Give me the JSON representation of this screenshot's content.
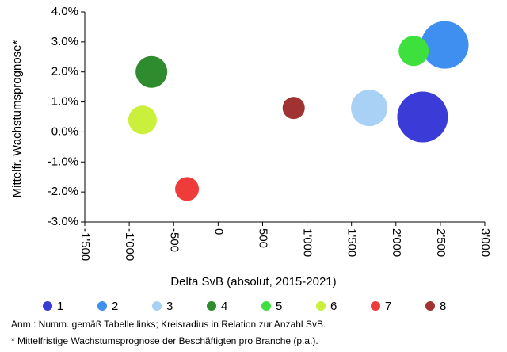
{
  "chart_data": {
    "type": "bubble",
    "xlabel": "Delta SvB (absolut, 2015-2021)",
    "ylabel": "Mittelfr. Wachstumsprognose*",
    "xlim": [
      -1500,
      3000
    ],
    "xticks": [
      {
        "value": -1500,
        "label": "-1'500"
      },
      {
        "value": -1000,
        "label": "-1'000"
      },
      -500,
      0,
      500,
      {
        "value": 1000,
        "label": "1'000"
      },
      {
        "value": 1500,
        "label": "1'500"
      },
      {
        "value": 2000,
        "label": "2'000"
      },
      {
        "value": 2500,
        "label": "2'500"
      },
      {
        "value": 3000,
        "label": "3'000"
      }
    ],
    "ylim": [
      -3,
      4
    ],
    "yticks": [
      {
        "value": -3,
        "label": "-3.0%"
      },
      {
        "value": -2,
        "label": "-2.0%"
      },
      {
        "value": -1,
        "label": "-1.0%"
      },
      {
        "value": 0,
        "label": "0.0%"
      },
      {
        "value": 1,
        "label": "1.0%"
      },
      {
        "value": 2,
        "label": "2.0%"
      },
      {
        "value": 3,
        "label": "3.0%"
      },
      {
        "value": 4,
        "label": "4.0%"
      }
    ],
    "series": [
      {
        "name": "1",
        "color": "#3b3bd8",
        "x": [
          2300
        ],
        "values": [
          0.5
        ],
        "sizes": [
          32
        ]
      },
      {
        "name": "2",
        "color": "#3f8ff0",
        "x": [
          2550
        ],
        "values": [
          2.9
        ],
        "sizes": [
          30
        ]
      },
      {
        "name": "3",
        "color": "#a9d0f5",
        "x": [
          1700
        ],
        "values": [
          0.8
        ],
        "sizes": [
          23
        ]
      },
      {
        "name": "4",
        "color": "#2e8b2e",
        "x": [
          -750
        ],
        "values": [
          2.0
        ],
        "sizes": [
          20
        ]
      },
      {
        "name": "5",
        "color": "#3ee03e",
        "x": [
          2200
        ],
        "values": [
          2.7
        ],
        "sizes": [
          19
        ]
      },
      {
        "name": "6",
        "color": "#caf03c",
        "x": [
          -850
        ],
        "values": [
          0.4
        ],
        "sizes": [
          18
        ]
      },
      {
        "name": "7",
        "color": "#f03b3b",
        "x": [
          -350
        ],
        "values": [
          -1.9
        ],
        "sizes": [
          15
        ]
      },
      {
        "name": "8",
        "color": "#a13232",
        "x": [
          850
        ],
        "values": [
          0.8
        ],
        "sizes": [
          14
        ]
      }
    ],
    "notes": [
      "Anm.: Numm. gemäß Tabelle links; Kreisradius in Relation zur Anzahl SvB.",
      "* Mittelfristige Wachstumsprognose der Beschäftigten pro Branche (p.a.)."
    ]
  }
}
